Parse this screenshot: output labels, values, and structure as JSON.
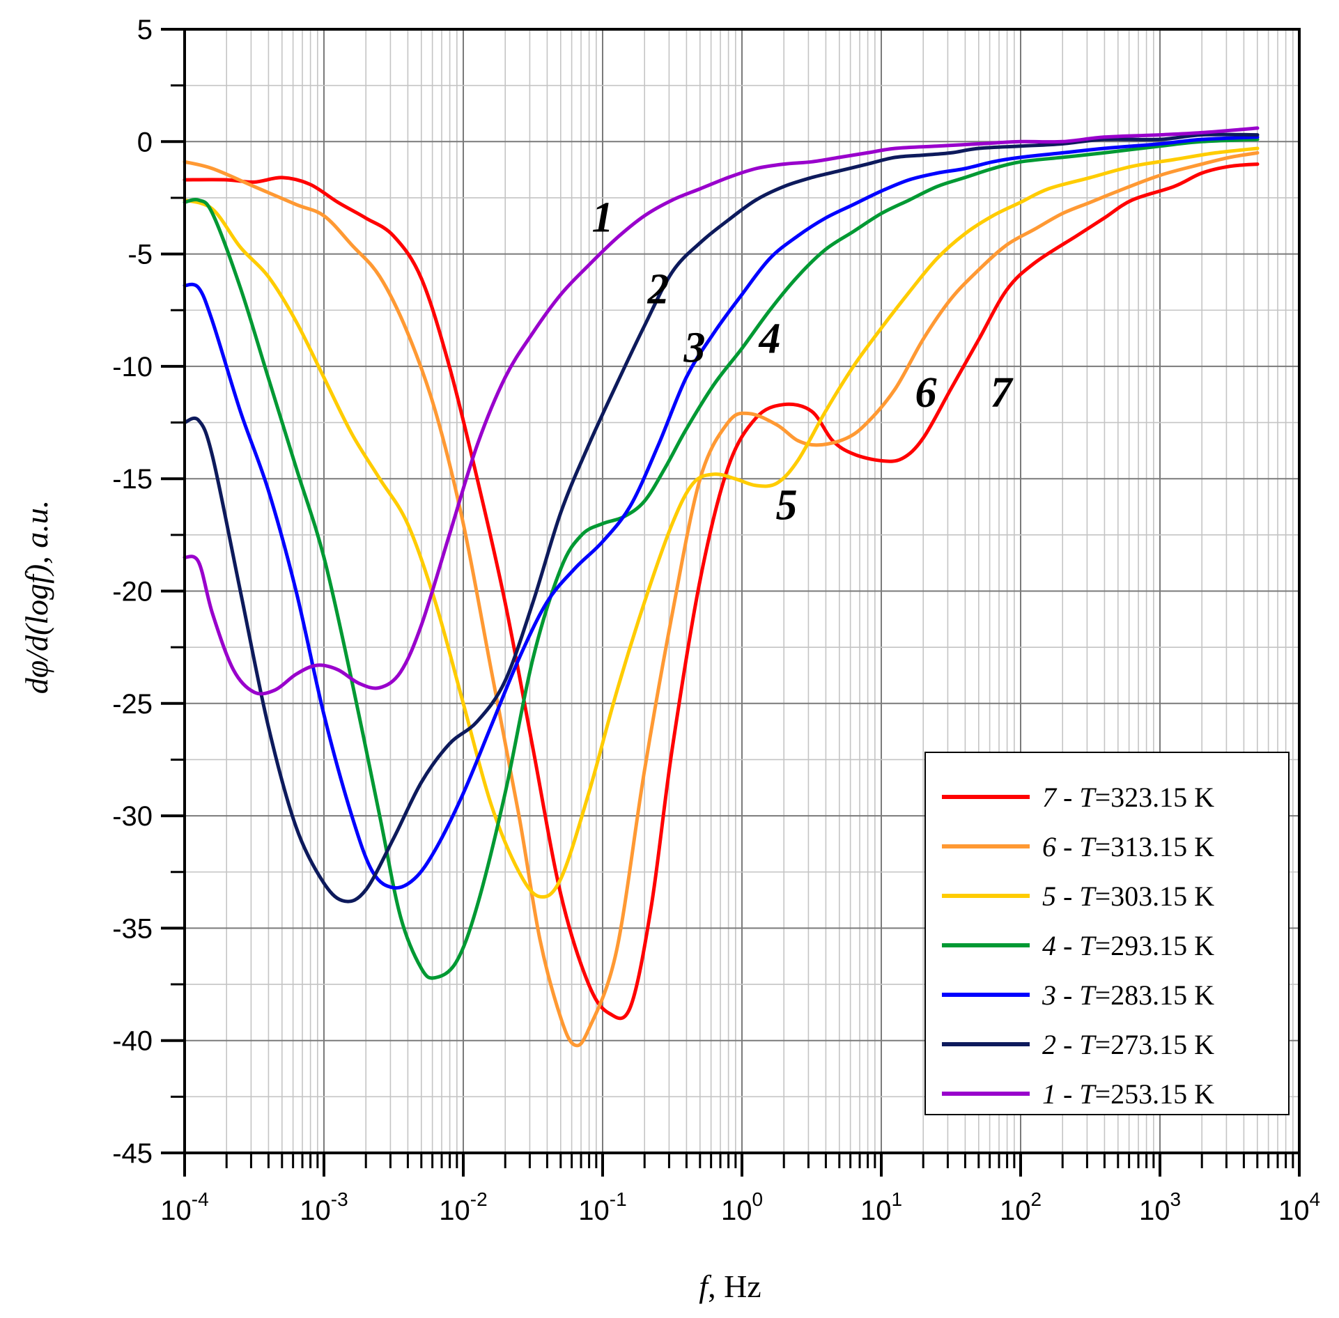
{
  "chart_data": {
    "type": "line",
    "title": "",
    "xlabel": "f, Hz",
    "xlabel_italic_part": "f",
    "xlabel_rest": ", Hz",
    "ylabel": "dφ/d(logf), a.u.",
    "xscale": "log",
    "xlim": [
      0.0001,
      10000
    ],
    "ylim": [
      -45,
      5
    ],
    "grid": true,
    "legend_position": "bottom-right",
    "yticks": [
      5,
      0,
      -5,
      -10,
      -15,
      -20,
      -25,
      -30,
      -35,
      -40,
      -45
    ],
    "ytick_labels": [
      "5",
      "0",
      "-5",
      "-10",
      "-15",
      "-20",
      "-25",
      "-30",
      "-35",
      "-40",
      "-45"
    ],
    "xticks": [
      {
        "base": "10",
        "exp": "-4",
        "value": 0.0001
      },
      {
        "base": "10",
        "exp": "-3",
        "value": 0.001
      },
      {
        "base": "10",
        "exp": "-2",
        "value": 0.01
      },
      {
        "base": "10",
        "exp": "-1",
        "value": 0.1
      },
      {
        "base": "10",
        "exp": "0",
        "value": 1
      },
      {
        "base": "10",
        "exp": "1",
        "value": 10
      },
      {
        "base": "10",
        "exp": "2",
        "value": 100
      },
      {
        "base": "10",
        "exp": "3",
        "value": 1000
      },
      {
        "base": "10",
        "exp": "4",
        "value": 10000
      }
    ],
    "series": [
      {
        "id": "7",
        "name": "7 - T=323.15 K",
        "num": "7",
        "sep": " - ",
        "var": "T",
        "val": "=323.15 K",
        "color": "#ff0000",
        "points": [
          [
            -4,
            -1.7
          ],
          [
            -3.7,
            -1.7
          ],
          [
            -3.5,
            -1.8
          ],
          [
            -3.3,
            -1.6
          ],
          [
            -3.1,
            -1.9
          ],
          [
            -2.9,
            -2.7
          ],
          [
            -2.7,
            -3.4
          ],
          [
            -2.5,
            -4.2
          ],
          [
            -2.3,
            -6.1
          ],
          [
            -2.1,
            -10.0
          ],
          [
            -1.9,
            -15.0
          ],
          [
            -1.7,
            -20.5
          ],
          [
            -1.5,
            -27.0
          ],
          [
            -1.3,
            -33.5
          ],
          [
            -1.1,
            -37.5
          ],
          [
            -0.95,
            -38.8
          ],
          [
            -0.8,
            -38.5
          ],
          [
            -0.65,
            -34.0
          ],
          [
            -0.5,
            -27.0
          ],
          [
            -0.3,
            -19.5
          ],
          [
            -0.1,
            -14.5
          ],
          [
            0.1,
            -12.3
          ],
          [
            0.3,
            -11.7
          ],
          [
            0.5,
            -12.0
          ],
          [
            0.65,
            -13.3
          ],
          [
            0.8,
            -13.9
          ],
          [
            1.0,
            -14.2
          ],
          [
            1.15,
            -14.1
          ],
          [
            1.3,
            -13.2
          ],
          [
            1.5,
            -11.0
          ],
          [
            1.7,
            -8.8
          ],
          [
            1.9,
            -6.6
          ],
          [
            2.1,
            -5.4
          ],
          [
            2.4,
            -4.2
          ],
          [
            2.6,
            -3.4
          ],
          [
            2.8,
            -2.6
          ],
          [
            3.1,
            -2.0
          ],
          [
            3.3,
            -1.4
          ],
          [
            3.5,
            -1.1
          ],
          [
            3.7,
            -1.0
          ]
        ]
      },
      {
        "id": "6",
        "name": "6 - T=313.15 K",
        "num": "6",
        "sep": " - ",
        "var": "T",
        "val": "=313.15 K",
        "color": "#ff9933",
        "points": [
          [
            -4,
            -0.9
          ],
          [
            -3.8,
            -1.2
          ],
          [
            -3.5,
            -2.0
          ],
          [
            -3.2,
            -2.8
          ],
          [
            -3.0,
            -3.3
          ],
          [
            -2.8,
            -4.6
          ],
          [
            -2.6,
            -6.0
          ],
          [
            -2.4,
            -8.5
          ],
          [
            -2.2,
            -12.0
          ],
          [
            -2.0,
            -17.0
          ],
          [
            -1.8,
            -23.5
          ],
          [
            -1.6,
            -30.0
          ],
          [
            -1.45,
            -35.5
          ],
          [
            -1.3,
            -39.0
          ],
          [
            -1.2,
            -40.2
          ],
          [
            -1.1,
            -39.5
          ],
          [
            -0.9,
            -36.0
          ],
          [
            -0.7,
            -28.0
          ],
          [
            -0.5,
            -21.0
          ],
          [
            -0.3,
            -15.0
          ],
          [
            -0.1,
            -12.5
          ],
          [
            0.05,
            -12.1
          ],
          [
            0.25,
            -12.6
          ],
          [
            0.4,
            -13.3
          ],
          [
            0.55,
            -13.5
          ],
          [
            0.75,
            -13.2
          ],
          [
            0.9,
            -12.5
          ],
          [
            1.1,
            -11.0
          ],
          [
            1.3,
            -8.8
          ],
          [
            1.5,
            -7.0
          ],
          [
            1.7,
            -5.7
          ],
          [
            1.9,
            -4.6
          ],
          [
            2.1,
            -3.9
          ],
          [
            2.3,
            -3.2
          ],
          [
            2.5,
            -2.7
          ],
          [
            2.7,
            -2.2
          ],
          [
            3.0,
            -1.5
          ],
          [
            3.3,
            -1.0
          ],
          [
            3.5,
            -0.7
          ],
          [
            3.7,
            -0.5
          ]
        ]
      },
      {
        "id": "5",
        "name": "5 - T=303.15 K",
        "num": "5",
        "sep": " - ",
        "var": "T",
        "val": "=303.15 K",
        "color": "#ffcc00",
        "points": [
          [
            -4,
            -2.6
          ],
          [
            -3.8,
            -3.0
          ],
          [
            -3.6,
            -4.7
          ],
          [
            -3.4,
            -6.0
          ],
          [
            -3.2,
            -8.0
          ],
          [
            -3.0,
            -10.5
          ],
          [
            -2.8,
            -13.0
          ],
          [
            -2.6,
            -15.0
          ],
          [
            -2.4,
            -17.0
          ],
          [
            -2.2,
            -20.5
          ],
          [
            -2.0,
            -25.0
          ],
          [
            -1.8,
            -29.5
          ],
          [
            -1.6,
            -32.5
          ],
          [
            -1.45,
            -33.6
          ],
          [
            -1.3,
            -32.8
          ],
          [
            -1.1,
            -29.0
          ],
          [
            -0.9,
            -24.5
          ],
          [
            -0.7,
            -20.5
          ],
          [
            -0.5,
            -17.0
          ],
          [
            -0.35,
            -15.2
          ],
          [
            -0.2,
            -14.8
          ],
          [
            -0.05,
            -15.0
          ],
          [
            0.1,
            -15.3
          ],
          [
            0.25,
            -15.2
          ],
          [
            0.4,
            -14.2
          ],
          [
            0.6,
            -12.0
          ],
          [
            0.8,
            -10.0
          ],
          [
            1.0,
            -8.3
          ],
          [
            1.2,
            -6.7
          ],
          [
            1.4,
            -5.2
          ],
          [
            1.6,
            -4.1
          ],
          [
            1.8,
            -3.3
          ],
          [
            2.0,
            -2.7
          ],
          [
            2.2,
            -2.1
          ],
          [
            2.5,
            -1.6
          ],
          [
            2.8,
            -1.1
          ],
          [
            3.1,
            -0.8
          ],
          [
            3.4,
            -0.5
          ],
          [
            3.7,
            -0.3
          ]
        ]
      },
      {
        "id": "4",
        "name": "4 - T=293.15 K",
        "num": "4",
        "sep": " - ",
        "var": "T",
        "val": "=293.15 K",
        "color": "#009933",
        "points": [
          [
            -4,
            -2.7
          ],
          [
            -3.9,
            -2.6
          ],
          [
            -3.8,
            -3.2
          ],
          [
            -3.6,
            -6.5
          ],
          [
            -3.4,
            -10.5
          ],
          [
            -3.2,
            -14.5
          ],
          [
            -3.0,
            -18.5
          ],
          [
            -2.8,
            -24.0
          ],
          [
            -2.6,
            -30.0
          ],
          [
            -2.45,
            -34.5
          ],
          [
            -2.3,
            -36.8
          ],
          [
            -2.2,
            -37.2
          ],
          [
            -2.05,
            -36.5
          ],
          [
            -1.9,
            -34.0
          ],
          [
            -1.7,
            -29.0
          ],
          [
            -1.5,
            -23.0
          ],
          [
            -1.3,
            -19.0
          ],
          [
            -1.15,
            -17.5
          ],
          [
            -1.0,
            -17.0
          ],
          [
            -0.85,
            -16.7
          ],
          [
            -0.7,
            -16.0
          ],
          [
            -0.55,
            -14.5
          ],
          [
            -0.4,
            -12.8
          ],
          [
            -0.2,
            -10.8
          ],
          [
            0,
            -9.2
          ],
          [
            0.2,
            -7.5
          ],
          [
            0.4,
            -6.0
          ],
          [
            0.6,
            -4.8
          ],
          [
            0.8,
            -4.0
          ],
          [
            1.0,
            -3.2
          ],
          [
            1.2,
            -2.6
          ],
          [
            1.4,
            -2.0
          ],
          [
            1.6,
            -1.6
          ],
          [
            1.8,
            -1.2
          ],
          [
            2.0,
            -0.9
          ],
          [
            2.3,
            -0.7
          ],
          [
            2.6,
            -0.5
          ],
          [
            3.0,
            -0.2
          ],
          [
            3.3,
            0.0
          ],
          [
            3.7,
            0.1
          ]
        ]
      },
      {
        "id": "3",
        "name": "3 - T=283.15 K",
        "num": "3",
        "sep": " - ",
        "var": "T",
        "val": "=283.15 K",
        "color": "#0000ff",
        "points": [
          [
            -4,
            -6.4
          ],
          [
            -3.9,
            -6.5
          ],
          [
            -3.8,
            -8.0
          ],
          [
            -3.6,
            -12.0
          ],
          [
            -3.4,
            -15.5
          ],
          [
            -3.2,
            -20.0
          ],
          [
            -3.0,
            -25.5
          ],
          [
            -2.8,
            -30.0
          ],
          [
            -2.65,
            -32.5
          ],
          [
            -2.5,
            -33.2
          ],
          [
            -2.35,
            -32.8
          ],
          [
            -2.2,
            -31.5
          ],
          [
            -2.0,
            -29.0
          ],
          [
            -1.8,
            -26.0
          ],
          [
            -1.6,
            -23.0
          ],
          [
            -1.4,
            -20.5
          ],
          [
            -1.2,
            -19.0
          ],
          [
            -1.0,
            -17.8
          ],
          [
            -0.8,
            -16.2
          ],
          [
            -0.6,
            -13.5
          ],
          [
            -0.4,
            -10.5
          ],
          [
            -0.2,
            -8.5
          ],
          [
            0,
            -6.8
          ],
          [
            0.2,
            -5.2
          ],
          [
            0.4,
            -4.2
          ],
          [
            0.6,
            -3.4
          ],
          [
            0.8,
            -2.8
          ],
          [
            1.0,
            -2.2
          ],
          [
            1.2,
            -1.7
          ],
          [
            1.4,
            -1.4
          ],
          [
            1.6,
            -1.2
          ],
          [
            1.8,
            -0.9
          ],
          [
            2.0,
            -0.7
          ],
          [
            2.3,
            -0.5
          ],
          [
            2.6,
            -0.3
          ],
          [
            3.0,
            -0.1
          ],
          [
            3.3,
            0.1
          ],
          [
            3.7,
            0.2
          ]
        ]
      },
      {
        "id": "2",
        "name": "2 - T=273.15 K",
        "num": "2",
        "sep": " - ",
        "var": "T",
        "val": "=273.15 K",
        "color": "#0d1a5c",
        "points": [
          [
            -4,
            -12.5
          ],
          [
            -3.9,
            -12.4
          ],
          [
            -3.8,
            -14.0
          ],
          [
            -3.6,
            -20.0
          ],
          [
            -3.4,
            -26.0
          ],
          [
            -3.2,
            -30.5
          ],
          [
            -3.0,
            -33.0
          ],
          [
            -2.85,
            -33.8
          ],
          [
            -2.7,
            -33.3
          ],
          [
            -2.5,
            -31.0
          ],
          [
            -2.3,
            -28.5
          ],
          [
            -2.1,
            -26.8
          ],
          [
            -1.9,
            -25.8
          ],
          [
            -1.7,
            -24.0
          ],
          [
            -1.5,
            -20.5
          ],
          [
            -1.3,
            -16.5
          ],
          [
            -1.1,
            -13.5
          ],
          [
            -0.9,
            -10.8
          ],
          [
            -0.7,
            -8.2
          ],
          [
            -0.5,
            -5.8
          ],
          [
            -0.3,
            -4.5
          ],
          [
            -0.1,
            -3.5
          ],
          [
            0.1,
            -2.6
          ],
          [
            0.3,
            -2.0
          ],
          [
            0.5,
            -1.6
          ],
          [
            0.7,
            -1.3
          ],
          [
            0.9,
            -1.0
          ],
          [
            1.1,
            -0.7
          ],
          [
            1.3,
            -0.6
          ],
          [
            1.5,
            -0.5
          ],
          [
            1.7,
            -0.3
          ],
          [
            2.0,
            -0.2
          ],
          [
            2.3,
            -0.1
          ],
          [
            2.6,
            0.1
          ],
          [
            3.0,
            0.1
          ],
          [
            3.3,
            0.3
          ],
          [
            3.7,
            0.3
          ]
        ]
      },
      {
        "id": "1",
        "name": "1 - T=253.15 K",
        "num": "1",
        "sep": " - ",
        "var": "T",
        "val": "=253.15 K",
        "color": "#9900cc",
        "points": [
          [
            -4,
            -18.5
          ],
          [
            -3.9,
            -18.7
          ],
          [
            -3.8,
            -21.0
          ],
          [
            -3.65,
            -23.5
          ],
          [
            -3.5,
            -24.5
          ],
          [
            -3.35,
            -24.4
          ],
          [
            -3.2,
            -23.7
          ],
          [
            -3.05,
            -23.3
          ],
          [
            -2.9,
            -23.5
          ],
          [
            -2.75,
            -24.1
          ],
          [
            -2.6,
            -24.3
          ],
          [
            -2.45,
            -23.6
          ],
          [
            -2.3,
            -21.5
          ],
          [
            -2.1,
            -17.5
          ],
          [
            -1.9,
            -13.5
          ],
          [
            -1.7,
            -10.5
          ],
          [
            -1.5,
            -8.5
          ],
          [
            -1.3,
            -6.8
          ],
          [
            -1.1,
            -5.5
          ],
          [
            -0.9,
            -4.3
          ],
          [
            -0.7,
            -3.3
          ],
          [
            -0.5,
            -2.6
          ],
          [
            -0.3,
            -2.1
          ],
          [
            -0.1,
            -1.6
          ],
          [
            0.1,
            -1.2
          ],
          [
            0.3,
            -1.0
          ],
          [
            0.5,
            -0.9
          ],
          [
            0.7,
            -0.7
          ],
          [
            0.9,
            -0.5
          ],
          [
            1.1,
            -0.3
          ],
          [
            1.4,
            -0.2
          ],
          [
            1.7,
            -0.1
          ],
          [
            2.0,
            0.0
          ],
          [
            2.3,
            0.0
          ],
          [
            2.6,
            0.2
          ],
          [
            3.0,
            0.3
          ],
          [
            3.3,
            0.4
          ],
          [
            3.7,
            0.6
          ]
        ]
      }
    ],
    "curve_labels": [
      {
        "text": "1",
        "x": -1.0,
        "y": -4.0
      },
      {
        "text": "2",
        "x": -0.6,
        "y": -7.2
      },
      {
        "text": "3",
        "x": -0.34,
        "y": -9.8
      },
      {
        "text": "4",
        "x": 0.2,
        "y": -9.4
      },
      {
        "text": "5",
        "x": 0.32,
        "y": -16.8
      },
      {
        "text": "6",
        "x": 1.32,
        "y": -11.8
      },
      {
        "text": "7",
        "x": 1.86,
        "y": -11.8
      }
    ]
  }
}
